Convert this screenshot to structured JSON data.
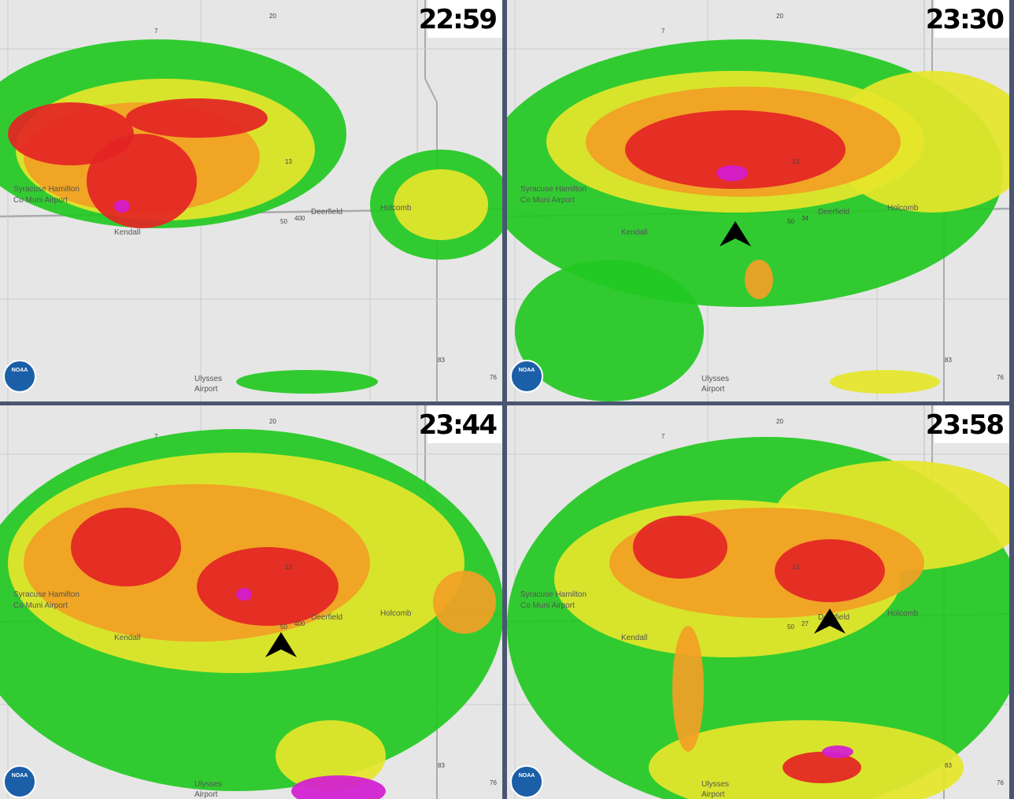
{
  "panels": [
    {
      "time": "22:59",
      "labels": [
        "Syracuse Hamilton",
        "Co Muni Airport",
        "Deerfield",
        "Holcomb",
        "Kendall",
        "Ulysses",
        "Airport",
        "13",
        "50",
        "400",
        "83",
        "76",
        "20",
        "7"
      ],
      "logo": "NOAA"
    },
    {
      "time": "23:30",
      "labels": [
        "Syracuse Hamilton",
        "Co Muni Airport",
        "Deerfield",
        "Holcomb",
        "Kendall",
        "Ulysses",
        "Airport",
        "13",
        "50",
        "34",
        "83",
        "76",
        "20",
        "7"
      ],
      "logo": "NOAA"
    },
    {
      "time": "23:44",
      "labels": [
        "Syracuse Hamilton",
        "Co Muni Airport",
        "Deerfield",
        "Holcomb",
        "Kendall",
        "Ulysses",
        "Airport",
        "13",
        "50",
        "400",
        "83",
        "76",
        "20",
        "7"
      ],
      "logo": "NOAA"
    },
    {
      "time": "23:58",
      "labels": [
        "Syracuse Hamilton",
        "Co Muni Airport",
        "Deerfield",
        "Holcomb",
        "Kendall",
        "Ulysses",
        "Airport",
        "13",
        "50",
        "27",
        "83",
        "76",
        "20",
        "7"
      ],
      "logo": "NOAA"
    }
  ]
}
